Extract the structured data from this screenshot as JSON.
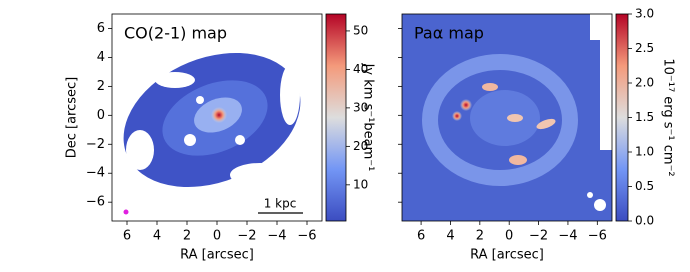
{
  "chart_data": [
    {
      "type": "image",
      "title": "CO(2-1) map",
      "xlabel": "RA [arcsec]",
      "ylabel": "Dec [arcsec]",
      "xlim": [
        7,
        -7
      ],
      "ylim": [
        -7.3,
        7
      ],
      "xticks": [
        6,
        4,
        2,
        0,
        {
          "value": -2,
          "label": "−2"
        },
        {
          "value": -4,
          "label": "−4"
        },
        {
          "value": -6,
          "label": "−6"
        }
      ],
      "yticks": [
        {
          "value": -6,
          "label": "−6"
        },
        {
          "value": -4,
          "label": "−4"
        },
        {
          "value": -2,
          "label": "−2"
        },
        0,
        2,
        4,
        6
      ],
      "scalebar_label": "1 kpc",
      "colorbar": {
        "label": "Jy km s⁻¹beam⁻¹",
        "lim": [
          0.6,
          54.4
        ],
        "ticks": [
          10,
          20,
          30,
          40,
          50
        ]
      }
    },
    {
      "type": "image",
      "title": "Paα map",
      "xlabel": "RA [arcsec]",
      "xlim": [
        7.3,
        -7
      ],
      "ylim": [
        -7.3,
        7
      ],
      "xticks": [
        6,
        4,
        2,
        0,
        {
          "value": -2,
          "label": "−2"
        },
        {
          "value": -4,
          "label": "−4"
        },
        {
          "value": -6,
          "label": "−6"
        }
      ],
      "yticks": [
        -6,
        -4,
        -2,
        0,
        2,
        4,
        6
      ],
      "colorbar": {
        "label": "10⁻¹⁷ erg s⁻¹ cm⁻²",
        "lim": [
          0,
          3
        ],
        "ticks": [
          {
            "value": 0,
            "label": "0.0"
          },
          {
            "value": 0.5,
            "label": "0.5"
          },
          {
            "value": 1,
            "label": "1.0"
          },
          {
            "value": 1.5,
            "label": "1.5"
          },
          {
            "value": 2,
            "label": "2.0"
          },
          {
            "value": 2.5,
            "label": "2.5"
          },
          {
            "value": 3,
            "label": "3.0"
          }
        ]
      }
    }
  ]
}
